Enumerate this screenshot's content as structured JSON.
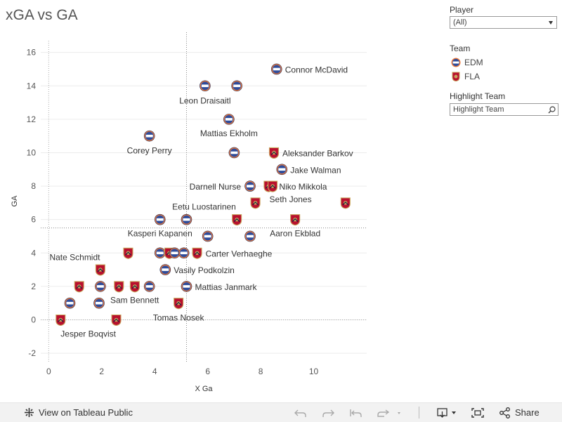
{
  "page": {
    "title": "xGA vs GA"
  },
  "filters": {
    "player_label": "Player",
    "player_value": "(All)",
    "team_label": "Team",
    "teams": [
      {
        "name": "EDM",
        "color": "#2f4d9b",
        "accent": "#f47a38"
      },
      {
        "name": "FLA",
        "color": "#b9102e",
        "accent": "#c8a45c"
      }
    ],
    "highlight_label": "Highlight Team",
    "highlight_placeholder": "Highlight Team"
  },
  "footer": {
    "view_label": "View on Tableau Public",
    "share_label": "Share"
  },
  "chart_data": {
    "type": "scatter",
    "title": "xGA vs GA",
    "xlabel": "X Ga",
    "ylabel": "GA",
    "xlim": [
      -0.3,
      12.0
    ],
    "ylim": [
      -2.5,
      16.7
    ],
    "x_ticks": [
      0,
      2,
      4,
      6,
      8,
      10
    ],
    "y_ticks": [
      -2,
      0,
      2,
      4,
      6,
      8,
      10,
      12,
      14,
      16
    ],
    "ref_x": 5.2,
    "ref_y": 5.5,
    "points": [
      {
        "x": 8.6,
        "y": 15,
        "team": "EDM",
        "label": "Connor McDavid"
      },
      {
        "x": 5.9,
        "y": 14,
        "team": "EDM",
        "label": "Leon Draisaitl"
      },
      {
        "x": 7.1,
        "y": 14,
        "team": "EDM",
        "label": ""
      },
      {
        "x": 6.8,
        "y": 12,
        "team": "EDM",
        "label": "Mattias Ekholm"
      },
      {
        "x": 3.8,
        "y": 11,
        "team": "EDM",
        "label": "Corey Perry"
      },
      {
        "x": 7.0,
        "y": 10,
        "team": "EDM",
        "label": ""
      },
      {
        "x": 8.5,
        "y": 10,
        "team": "FLA",
        "label": "Aleksander Barkov"
      },
      {
        "x": 8.8,
        "y": 9,
        "team": "EDM",
        "label": "Jake Walman"
      },
      {
        "x": 7.6,
        "y": 8,
        "team": "EDM",
        "label": "Darnell Nurse"
      },
      {
        "x": 8.3,
        "y": 8,
        "team": "FLA",
        "label": "Niko Mikkola"
      },
      {
        "x": 8.45,
        "y": 8,
        "team": "FLA",
        "label": ""
      },
      {
        "x": 7.8,
        "y": 7,
        "team": "FLA",
        "label": "Seth Jones"
      },
      {
        "x": 11.2,
        "y": 7,
        "team": "FLA",
        "label": ""
      },
      {
        "x": 5.2,
        "y": 6,
        "team": "EDM",
        "label": "Eetu Luostarinen"
      },
      {
        "x": 4.2,
        "y": 6,
        "team": "EDM",
        "label": "Kasperi Kapanen"
      },
      {
        "x": 7.1,
        "y": 6,
        "team": "FLA",
        "label": ""
      },
      {
        "x": 9.3,
        "y": 6,
        "team": "FLA",
        "label": "Aaron Ekblad"
      },
      {
        "x": 6.0,
        "y": 5,
        "team": "EDM",
        "label": ""
      },
      {
        "x": 7.6,
        "y": 5,
        "team": "EDM",
        "label": ""
      },
      {
        "x": 3.0,
        "y": 4,
        "team": "FLA",
        "label": "Nate Schmidt"
      },
      {
        "x": 4.2,
        "y": 4,
        "team": "EDM",
        "label": ""
      },
      {
        "x": 4.55,
        "y": 4,
        "team": "FLA",
        "label": ""
      },
      {
        "x": 4.75,
        "y": 4,
        "team": "EDM",
        "label": ""
      },
      {
        "x": 5.1,
        "y": 4,
        "team": "EDM",
        "label": ""
      },
      {
        "x": 5.6,
        "y": 4,
        "team": "FLA",
        "label": "Carter Verhaeghe"
      },
      {
        "x": 4.4,
        "y": 3,
        "team": "EDM",
        "label": "Vasily Podkolzin"
      },
      {
        "x": 1.95,
        "y": 3,
        "team": "FLA",
        "label": ""
      },
      {
        "x": 1.15,
        "y": 2,
        "team": "FLA",
        "label": ""
      },
      {
        "x": 1.95,
        "y": 2,
        "team": "EDM",
        "label": ""
      },
      {
        "x": 2.65,
        "y": 2,
        "team": "FLA",
        "label": ""
      },
      {
        "x": 3.25,
        "y": 2,
        "team": "FLA",
        "label": ""
      },
      {
        "x": 3.8,
        "y": 2,
        "team": "EDM",
        "label": ""
      },
      {
        "x": 5.2,
        "y": 2,
        "team": "EDM",
        "label": "Mattias Janmark"
      },
      {
        "x": 0.8,
        "y": 1,
        "team": "EDM",
        "label": ""
      },
      {
        "x": 1.9,
        "y": 1,
        "team": "EDM",
        "label": "Sam Bennett"
      },
      {
        "x": 4.9,
        "y": 1,
        "team": "FLA",
        "label": "Tomas Nosek"
      },
      {
        "x": 0.45,
        "y": 0,
        "team": "FLA",
        "label": "Jesper Boqvist"
      },
      {
        "x": 2.55,
        "y": 0,
        "team": "FLA",
        "label": ""
      }
    ]
  }
}
